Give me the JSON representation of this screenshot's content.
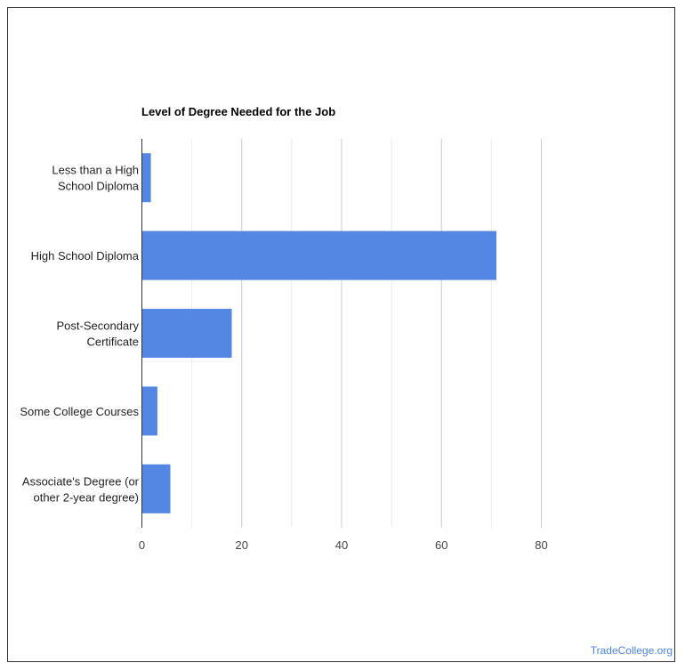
{
  "chart_data": {
    "type": "bar",
    "orientation": "horizontal",
    "title": "Level of Degree Needed for the Job",
    "categories": [
      [
        "Less than a High",
        "School Diploma"
      ],
      [
        "High School Diploma"
      ],
      [
        "Post-Secondary",
        "Certificate"
      ],
      [
        "Some College Courses"
      ],
      [
        "Associate's Degree (or",
        "other 2-year degree)"
      ]
    ],
    "values": [
      1.8,
      71,
      18,
      3.1,
      5.7
    ],
    "xlim": [
      0,
      80
    ],
    "xticks": [
      0,
      20,
      40,
      60,
      80
    ],
    "grid": true,
    "bar_color": "#5486e3",
    "xlabel": "",
    "ylabel": ""
  },
  "credit": "TradeCollege.org"
}
